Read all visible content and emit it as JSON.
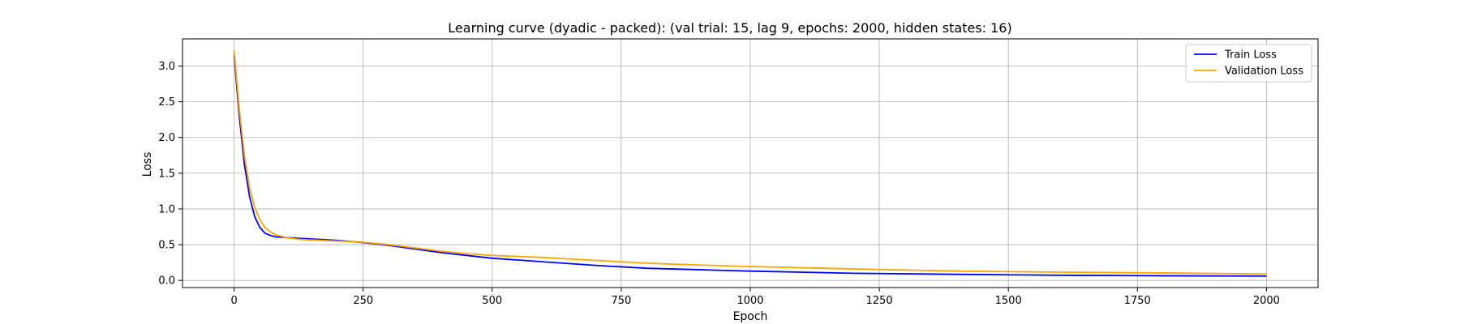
{
  "chart_data": {
    "type": "line",
    "title": "Learning curve (dyadic - packed): (val trial: 15, lag 9, epochs: 2000, hidden states: 16)",
    "xlabel": "Epoch",
    "ylabel": "Loss",
    "xlim": [
      -100,
      2100
    ],
    "ylim": [
      -0.1,
      3.38
    ],
    "xticks": [
      0,
      250,
      500,
      750,
      1000,
      1250,
      1500,
      1750,
      2000
    ],
    "yticks": [
      0.0,
      0.5,
      1.0,
      1.5,
      2.0,
      2.5,
      3.0
    ],
    "xtick_labels": [
      "0",
      "250",
      "500",
      "750",
      "1000",
      "1250",
      "1500",
      "1750",
      "2000"
    ],
    "ytick_labels": [
      "0.0",
      "0.5",
      "1.0",
      "1.5",
      "2.0",
      "2.5",
      "3.0"
    ],
    "grid": true,
    "legend_position": "top-right",
    "series": [
      {
        "name": "Train Loss",
        "color": "#0000ff",
        "x": [
          0,
          10,
          20,
          30,
          40,
          50,
          60,
          70,
          80,
          100,
          125,
          150,
          200,
          250,
          300,
          350,
          400,
          450,
          500,
          600,
          700,
          800,
          900,
          1000,
          1200,
          1400,
          1600,
          1800,
          2000
        ],
        "y": [
          3.15,
          2.3,
          1.62,
          1.17,
          0.89,
          0.74,
          0.66,
          0.63,
          0.61,
          0.6,
          0.59,
          0.58,
          0.56,
          0.53,
          0.49,
          0.44,
          0.39,
          0.35,
          0.31,
          0.26,
          0.21,
          0.17,
          0.15,
          0.13,
          0.1,
          0.085,
          0.072,
          0.065,
          0.06
        ]
      },
      {
        "name": "Validation Loss",
        "color": "#ffa500",
        "x": [
          0,
          10,
          20,
          30,
          40,
          50,
          60,
          70,
          80,
          100,
          125,
          150,
          200,
          250,
          300,
          350,
          400,
          450,
          500,
          600,
          700,
          800,
          900,
          1000,
          1200,
          1400,
          1600,
          1800,
          2000
        ],
        "y": [
          3.22,
          2.4,
          1.75,
          1.3,
          1.02,
          0.85,
          0.74,
          0.68,
          0.64,
          0.6,
          0.575,
          0.565,
          0.55,
          0.535,
          0.5,
          0.455,
          0.41,
          0.375,
          0.35,
          0.32,
          0.28,
          0.24,
          0.215,
          0.195,
          0.16,
          0.13,
          0.115,
          0.105,
          0.09
        ]
      }
    ]
  }
}
